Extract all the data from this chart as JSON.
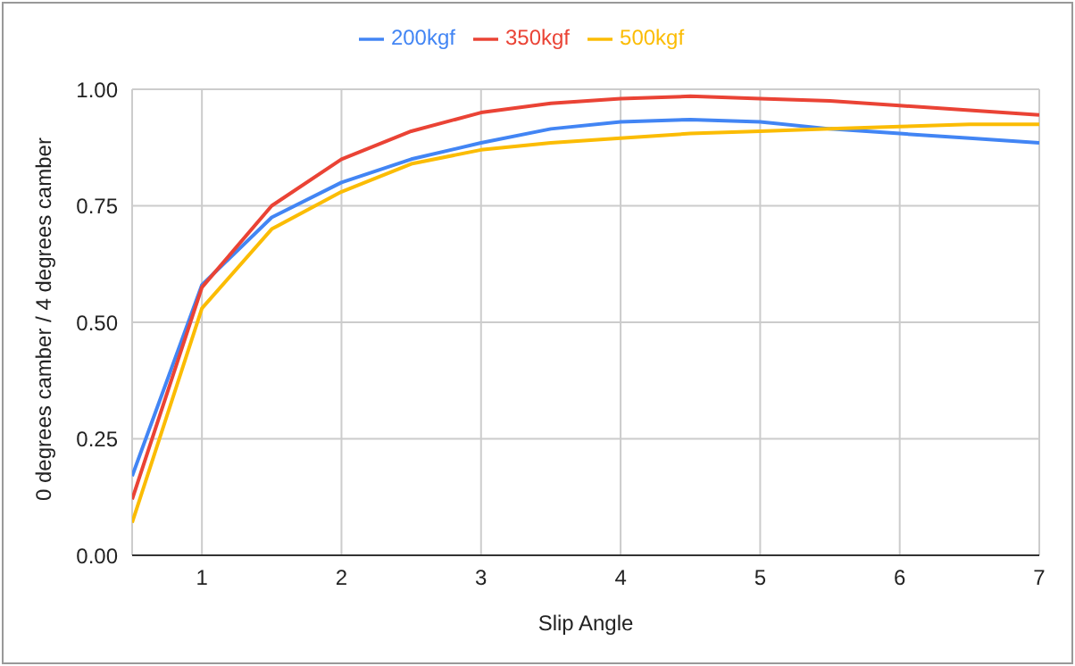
{
  "chart_data": {
    "type": "line",
    "xlabel": "Slip Angle",
    "ylabel": "0 degrees camber / 4 degrees camber",
    "x": [
      0.5,
      1,
      1.5,
      2,
      2.5,
      3,
      3.5,
      4,
      4.5,
      5,
      5.5,
      6,
      6.5,
      7
    ],
    "series": [
      {
        "name": "200kgf",
        "color": "#4285f4",
        "values": [
          0.17,
          0.58,
          0.725,
          0.8,
          0.85,
          0.885,
          0.915,
          0.93,
          0.935,
          0.93,
          0.915,
          0.905,
          0.895,
          0.885
        ]
      },
      {
        "name": "350kgf",
        "color": "#ea4335",
        "values": [
          0.12,
          0.575,
          0.75,
          0.85,
          0.91,
          0.95,
          0.97,
          0.98,
          0.985,
          0.98,
          0.975,
          0.965,
          0.955,
          0.945
        ]
      },
      {
        "name": "500kgf",
        "color": "#fbbc04",
        "values": [
          0.07,
          0.53,
          0.7,
          0.78,
          0.84,
          0.87,
          0.885,
          0.895,
          0.905,
          0.91,
          0.915,
          0.92,
          0.925,
          0.925
        ]
      }
    ],
    "xlim": [
      0.5,
      7
    ],
    "xticks": [
      1,
      2,
      3,
      4,
      5,
      6,
      7
    ],
    "ylim": [
      0,
      1
    ],
    "yticks": [
      {
        "value": 0,
        "label": "0.00"
      },
      {
        "value": 0.25,
        "label": "0.25"
      },
      {
        "value": 0.5,
        "label": "0.50"
      },
      {
        "value": 0.75,
        "label": "0.75"
      },
      {
        "value": 1,
        "label": "1.00"
      }
    ],
    "grid": true,
    "legend": "top",
    "marker": "none",
    "line_style": "solid"
  }
}
